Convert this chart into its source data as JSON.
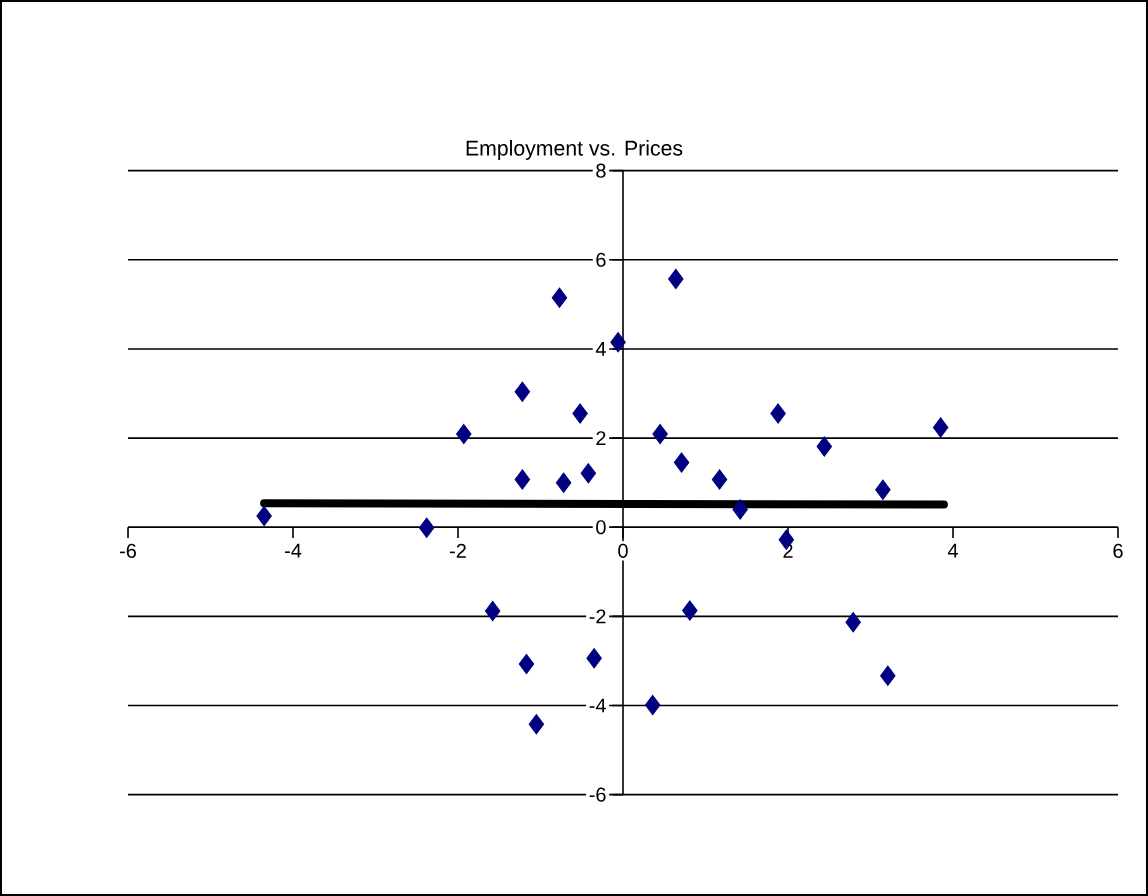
{
  "chart_data": {
    "type": "scatter",
    "title": "Employment vs. Prices",
    "series": [
      {
        "color": "#000080",
        "marker": "diamond",
        "x": [
          -0.77,
          -0.06,
          -1.22,
          -0.52,
          -1.93,
          -1.22,
          -0.72,
          -0.42,
          -4.35,
          -2.38,
          -1.58,
          -1.17,
          -0.35,
          -1.05,
          0.64,
          1.88,
          0.45,
          2.44,
          3.85,
          0.71,
          1.17,
          1.42,
          3.15,
          1.98,
          0.81,
          2.79,
          3.21,
          0.36
        ],
        "values": [
          5.15,
          4.15,
          3.04,
          2.55,
          2.09,
          1.07,
          1.0,
          1.21,
          0.25,
          -0.01,
          -1.88,
          -3.07,
          -2.94,
          -4.42,
          5.57,
          2.55,
          2.09,
          1.81,
          2.24,
          1.45,
          1.07,
          0.4,
          0.84,
          -0.28,
          -1.87,
          -2.13,
          -3.33,
          -3.99
        ]
      },
      {
        "type": "line",
        "color": "#000000",
        "marker": "none",
        "line_style": "solid",
        "x": [
          -4.35,
          3.89
        ],
        "values": [
          0.54,
          0.51
        ]
      }
    ],
    "xlim": [
      -6,
      6
    ],
    "ylim": [
      -6,
      8
    ],
    "xticks": [
      -6,
      -4,
      -2,
      0,
      2,
      4,
      6
    ],
    "yticks": [
      -6,
      -4,
      -2,
      0,
      2,
      4,
      6,
      8
    ],
    "grid": "y"
  }
}
